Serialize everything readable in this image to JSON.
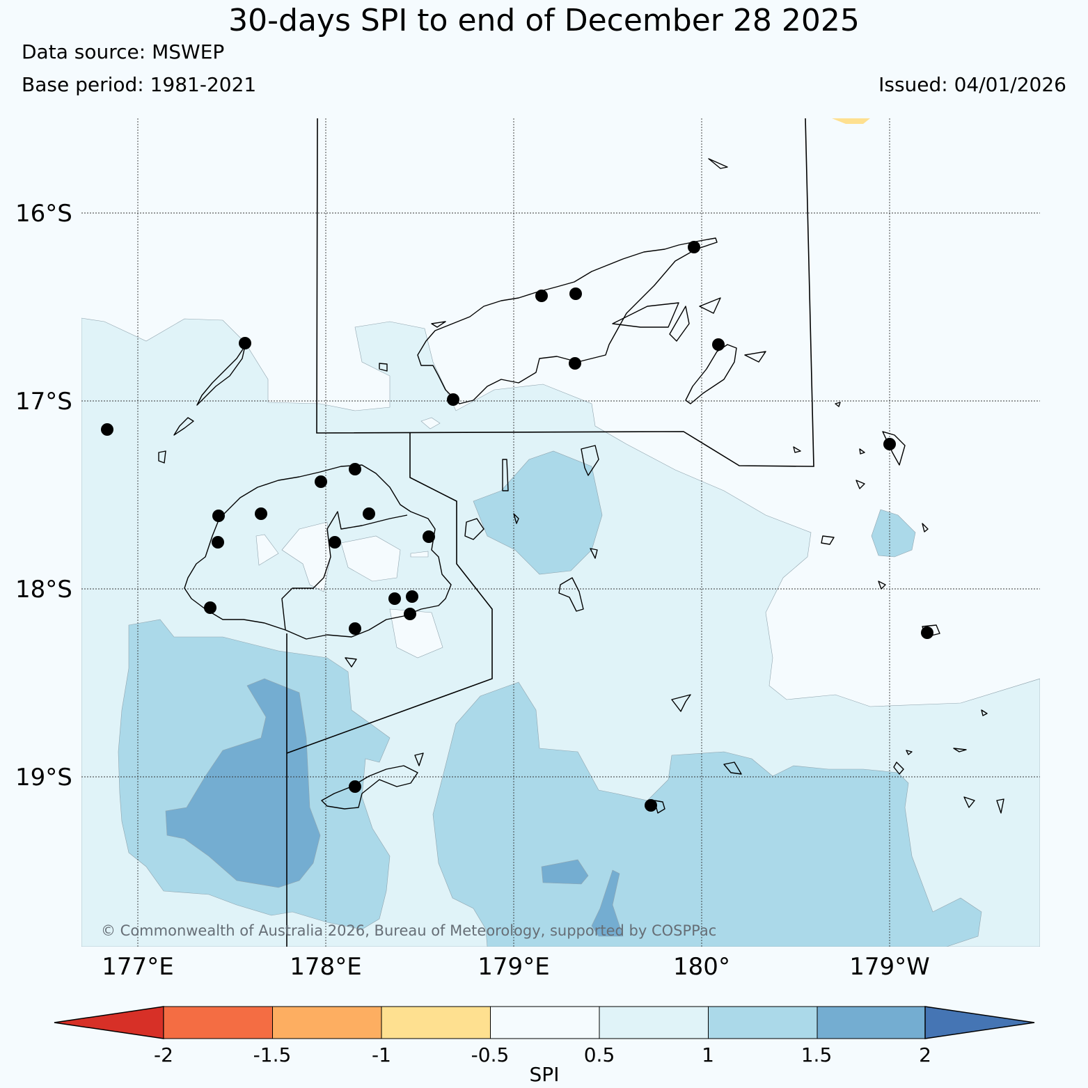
{
  "title": "30-days SPI to end of December 28 2025",
  "data_source": "Data source: MSWEP",
  "base_period": "Base period: 1981-2021",
  "issued": "Issued: 04/01/2026",
  "copyright": "© Commonwealth of Australia 2026, Bureau of Meteorology, supported by COSPPac",
  "latitude_labels": [
    "16°S",
    "17°S",
    "18°S",
    "19°S"
  ],
  "longitude_labels": [
    "177°E",
    "178°E",
    "179°E",
    "180°",
    "179°W"
  ],
  "colorbar": {
    "title": "SPI",
    "tick_labels": [
      "-2",
      "-1.5",
      "-1",
      "-0.5",
      "0.5",
      "1",
      "1.5",
      "2"
    ],
    "colors": [
      "#d73027",
      "#f46d43",
      "#fdae61",
      "#fee090",
      "#f5fbfe",
      "#e0f3f8",
      "#abd9e9",
      "#74add1",
      "#4575b4"
    ]
  },
  "legend_classes": [
    {
      "range": "< -2",
      "color": "#d73027"
    },
    {
      "range": "-2 to -1.5",
      "color": "#f46d43"
    },
    {
      "range": "-1.5 to -1",
      "color": "#fdae61"
    },
    {
      "range": "-1 to -0.5",
      "color": "#fee090"
    },
    {
      "range": "-0.5 to 0.5",
      "color": "#f5fbfe"
    },
    {
      "range": "0.5 to 1",
      "color": "#e0f3f8"
    },
    {
      "range": "1 to 1.5",
      "color": "#abd9e9"
    },
    {
      "range": "1.5 to 2",
      "color": "#74add1"
    },
    {
      "range": "> 2",
      "color": "#4575b4"
    }
  ]
}
